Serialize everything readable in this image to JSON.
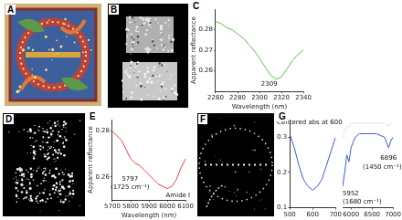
{
  "images": [
    {
      "label": "A"
    },
    {
      "label": "B"
    },
    {
      "label": "D"
    },
    {
      "label": "F"
    }
  ],
  "chart_data": [
    {
      "label": "C",
      "type": "line",
      "xlabel": "Wavelength (nm)",
      "ylabel": "Apparent reflectance",
      "grid": false,
      "xlim": [
        2260,
        2340
      ],
      "xticks": [
        2260,
        2280,
        2300,
        2320,
        2340
      ],
      "ylim": [
        0.25,
        0.29
      ],
      "yticks": [
        0.26,
        0.27,
        0.28
      ],
      "series": [
        {
          "color": "#5cbf4a",
          "x": [
            2260,
            2265,
            2270,
            2275,
            2280,
            2285,
            2290,
            2295,
            2300,
            2305,
            2310,
            2315,
            2320,
            2325,
            2330,
            2335,
            2340
          ],
          "values": [
            0.284,
            0.283,
            0.281,
            0.28,
            0.278,
            0.276,
            0.273,
            0.27,
            0.266,
            0.262,
            0.258,
            0.256,
            0.257,
            0.261,
            0.265,
            0.268,
            0.27
          ]
        }
      ],
      "annotations": [
        {
          "text": "2309",
          "x": 2309,
          "y": 0.2535
        }
      ]
    },
    {
      "label": "E",
      "type": "line",
      "xlabel": "Wavelength (nm)",
      "ylabel": "Apparent reflectance",
      "grid": false,
      "xlim": [
        5700,
        6100
      ],
      "xticks": [
        5700,
        5800,
        5900,
        6000,
        6100
      ],
      "ylim": [
        0.25,
        0.285
      ],
      "yticks": [
        0.26,
        0.28
      ],
      "series": [
        {
          "color": "#e0473a",
          "x": [
            5700,
            5725,
            5750,
            5775,
            5800,
            5825,
            5850,
            5875,
            5900,
            5925,
            5950,
            5975,
            6000,
            6025,
            6050,
            6075,
            6100
          ],
          "values": [
            0.28,
            0.278,
            0.276,
            0.272,
            0.268,
            0.266,
            0.265,
            0.263,
            0.261,
            0.259,
            0.257,
            0.256,
            0.255,
            0.256,
            0.259,
            0.264,
            0.268
          ]
        }
      ],
      "annotations": [
        {
          "text": "5797",
          "x": 5797,
          "y": 0.259
        },
        {
          "text": "(1725 cm⁻¹)",
          "x": 5797,
          "y": 0.2555
        },
        {
          "text": "Amide I",
          "x": 6060,
          "y": 0.252
        }
      ]
    },
    {
      "label": "G",
      "type": "line",
      "grid": false,
      "ylim": [
        0.1,
        0.35
      ],
      "yticks": [
        0.1,
        0.2,
        0.3
      ],
      "segments": [
        {
          "xlim": [
            500,
            700
          ],
          "xticks": [
            500,
            600,
            700
          ],
          "series": [
            {
              "color": "#3a5bd9",
              "x": [
                500,
                520,
                540,
                560,
                580,
                600,
                620,
                640,
                660,
                680,
                700
              ],
              "values": [
                0.31,
                0.27,
                0.22,
                0.18,
                0.16,
                0.15,
                0.16,
                0.18,
                0.22,
                0.26,
                0.3
              ]
            }
          ],
          "annotations": [
            {
              "text": "Centered abs at 600",
              "x": 600,
              "y": 0.34
            }
          ]
        },
        {
          "xlim": [
            5800,
            7000
          ],
          "xticks": [
            6000,
            6500,
            7000
          ],
          "tick_labels": "x",
          "series": [
            {
              "color": "#3a5bd9",
              "x": [
                5800,
                5850,
                5900,
                5952,
                6000,
                6100,
                6200,
                6400,
                6600,
                6800,
                6896,
                6950,
                7000
              ],
              "values": [
                0.16,
                0.2,
                0.25,
                0.23,
                0.27,
                0.3,
                0.31,
                0.31,
                0.31,
                0.3,
                0.27,
                0.29,
                0.3
              ]
            },
            {
              "color": "#aaaaaa",
              "line_style": "dotted",
              "x": [
                5800,
                5850,
                5900,
                5952,
                6000,
                6100,
                6200,
                6400,
                6600,
                6800,
                6896,
                6950,
                7000
              ],
              "values": [
                0.3,
                0.32,
                0.33,
                0.33,
                0.34,
                0.34,
                0.34,
                0.34,
                0.34,
                0.34,
                0.33,
                0.34,
                0.34
              ]
            }
          ],
          "annotations": [
            {
              "text": "5952",
              "x": 5952,
              "y": 0.14
            },
            {
              "text": "(1680 cm⁻¹)",
              "x": 5952,
              "y": 0.115
            },
            {
              "text": "6896",
              "x": 6896,
              "y": 0.24
            },
            {
              "text": "(1450 cm⁻¹)",
              "x": 6896,
              "y": 0.215
            }
          ]
        }
      ]
    }
  ]
}
